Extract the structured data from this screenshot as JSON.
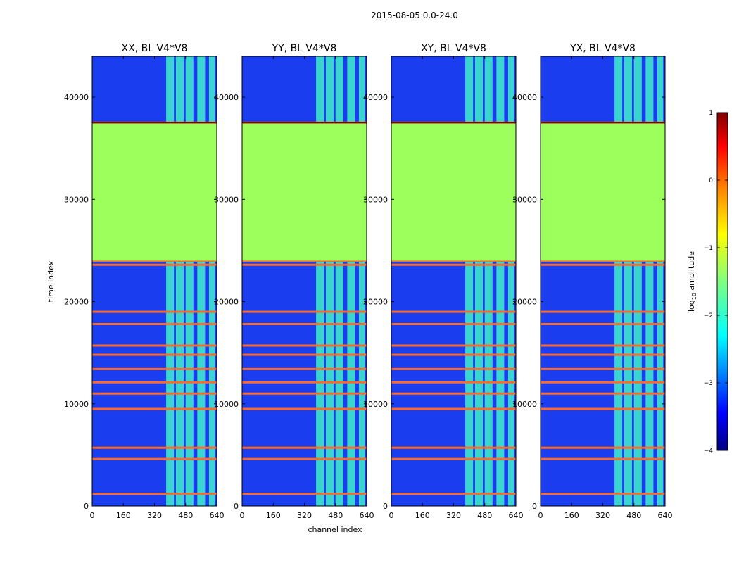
{
  "chart_data": {
    "type": "heatmap",
    "suptitle": "2015-08-05 0.0-24.0",
    "xlabel": "channel index",
    "ylabel": "time index",
    "x_ticks": [
      0,
      160,
      320,
      480,
      640
    ],
    "y_ticks": [
      0,
      10000,
      20000,
      30000,
      40000
    ],
    "xlim": [
      0,
      640
    ],
    "ylim": [
      0,
      44000
    ],
    "colormap": "jet",
    "colorbar": {
      "label": "log$_{10}$ amplitude",
      "label_main": "log",
      "label_sub": "10",
      "label_rest": " amplitude",
      "range": [
        -4,
        1
      ],
      "ticks": [
        "1",
        "0",
        "−1",
        "−2",
        "−3",
        "−4"
      ],
      "colors": [
        "#800000",
        "#ff0000",
        "#ff8000",
        "#ffff00",
        "#80ff80",
        "#00ffff",
        "#0080ff",
        "#0000ff",
        "#000080"
      ]
    },
    "panels": [
      {
        "title": "XX, BL V4*V8",
        "pol": "XX"
      },
      {
        "title": "YY, BL V4*V8",
        "pol": "YY"
      },
      {
        "title": "XY, BL V4*V8",
        "pol": "XY"
      },
      {
        "title": "YX, BL V4*V8",
        "pol": "YX"
      }
    ],
    "flagged_time_range": [
      24000,
      37500
    ],
    "flagged_value_log10": -1.0,
    "flag_lines_time": [
      37500,
      24000,
      23600,
      19000,
      17800,
      15700,
      14800,
      13400,
      12100,
      11000,
      9500,
      5700,
      4600,
      1200
    ],
    "bright_channel_ranges": [
      [
        380,
        420
      ],
      [
        430,
        470
      ],
      [
        480,
        520
      ],
      [
        540,
        580
      ],
      [
        600,
        630
      ]
    ],
    "background_value_log10": -3.5
  },
  "colors": {
    "flagged": "#9cff5b",
    "background": "#1a3df0",
    "line": "#ff6a2a",
    "band": "#3ff0c8"
  }
}
